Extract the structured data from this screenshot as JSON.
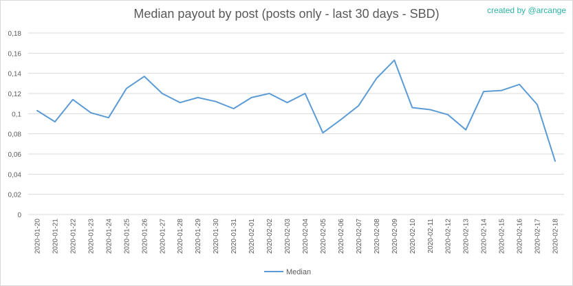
{
  "header": {
    "title": "Median payout by post (posts only - last 30 days - SBD)",
    "credit": "created by @arcange"
  },
  "chart_data": {
    "type": "line",
    "title": "Median payout by post (posts only - last 30 days - SBD)",
    "xlabel": "",
    "ylabel": "",
    "ylim": [
      0,
      0.18
    ],
    "yticks": [
      "0",
      "0,02",
      "0,04",
      "0,06",
      "0,08",
      "0,1",
      "0,12",
      "0,14",
      "0,16",
      "0,18"
    ],
    "grid": true,
    "legend_position": "bottom",
    "categories": [
      "2020-01-20",
      "2020-01-21",
      "2020-01-22",
      "2020-01-23",
      "2020-01-24",
      "2020-01-25",
      "2020-01-26",
      "2020-01-27",
      "2020-01-28",
      "2020-01-29",
      "2020-01-30",
      "2020-01-31",
      "2020-02-01",
      "2020-02-02",
      "2020-02-03",
      "2020-02-04",
      "2020-02-05",
      "2020-02-06",
      "2020-02-07",
      "2020-02-08",
      "2020-02-09",
      "2020-02-10",
      "2020-02-11",
      "2020-02-12",
      "2020-02-13",
      "2020-02-14",
      "2020-02-15",
      "2020-02-16",
      "2020-02-17",
      "2020-02-18"
    ],
    "series": [
      {
        "name": "Median",
        "color": "#5b9bd5",
        "values": [
          0.103,
          0.092,
          0.114,
          0.101,
          0.096,
          0.125,
          0.137,
          0.12,
          0.111,
          0.116,
          0.112,
          0.105,
          0.116,
          0.12,
          0.111,
          0.12,
          0.081,
          0.094,
          0.108,
          0.135,
          0.153,
          0.106,
          0.104,
          0.099,
          0.084,
          0.122,
          0.123,
          0.129,
          0.109,
          0.053
        ]
      }
    ]
  }
}
